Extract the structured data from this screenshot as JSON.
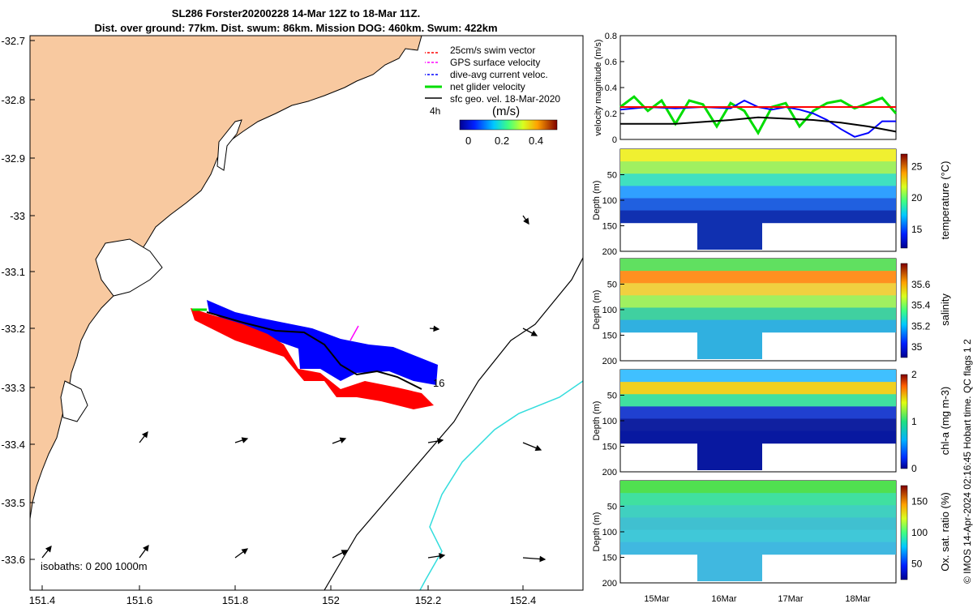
{
  "titles": {
    "line1": "SL286 Forster20200228 14-Mar 12Z to 18-Mar 11Z.",
    "line2": "Dist. over ground: 77km. Dist. swum: 86km. Mission DOG: 460km. Swum: 422km"
  },
  "credit": "© IMOS 14-Apr-2024 02:16:45 Hobart time. QC flags 1  2",
  "map": {
    "lon_ticks": [
      "151.4",
      "151.6",
      "151.8",
      "152",
      "152.2",
      "152.4"
    ],
    "lat_ticks": [
      "-32.7",
      "-32.8",
      "-32.9",
      "-33",
      "-33.1",
      "-33.2",
      "-33.3",
      "-33.4",
      "-33.5",
      "-33.6"
    ],
    "legend": [
      "25cm/s swim vector",
      "GPS surface velocity",
      "dive-avg current veloc.",
      "net glider velocity",
      "sfc geo. vel. 18-Mar-2020"
    ],
    "legend_extra": "4h",
    "colorbar_label": "(m/s)",
    "colorbar_ticks": [
      "0",
      "0.2",
      "0.4"
    ],
    "isobaths": "isobaths: 0   200  1000m",
    "end_label": "16",
    "colors": {
      "land": "#f8c9a0",
      "swim": "#ff0000",
      "gps": "#ff00ff",
      "dac": "#0000ff",
      "net": "#00dd00",
      "isobath1000": "#33dddd"
    }
  },
  "chart_data": [
    {
      "type": "line",
      "ylabel": "velocity magnitude (m/s)",
      "ylim": [
        0,
        0.8
      ],
      "yticks": [
        "0",
        "0.2",
        "0.4",
        "0.6",
        "0.8"
      ],
      "x_ticks": [
        "15Mar",
        "16Mar",
        "17Mar",
        "18Mar"
      ],
      "series": [
        {
          "color": "#00dd00",
          "t": [
            0,
            0.05,
            0.1,
            0.15,
            0.2,
            0.25,
            0.3,
            0.35,
            0.4,
            0.45,
            0.5,
            0.55,
            0.6,
            0.65,
            0.7,
            0.75,
            0.8,
            0.85,
            0.9,
            0.95,
            1
          ],
          "v": [
            0.25,
            0.33,
            0.22,
            0.3,
            0.12,
            0.3,
            0.27,
            0.1,
            0.28,
            0.22,
            0.05,
            0.25,
            0.28,
            0.1,
            0.22,
            0.28,
            0.3,
            0.24,
            0.28,
            0.32,
            0.2
          ]
        },
        {
          "color": "#0000ff",
          "t": [
            0,
            0.1,
            0.2,
            0.3,
            0.4,
            0.45,
            0.5,
            0.55,
            0.6,
            0.65,
            0.7,
            0.75,
            0.8,
            0.85,
            0.9,
            0.95,
            1
          ],
          "v": [
            0.23,
            0.25,
            0.24,
            0.25,
            0.24,
            0.3,
            0.25,
            0.23,
            0.25,
            0.23,
            0.2,
            0.15,
            0.08,
            0.02,
            0.05,
            0.14,
            0.14
          ]
        },
        {
          "color": "#ff0000",
          "t": [
            0,
            1
          ],
          "v": [
            0.25,
            0.25
          ]
        },
        {
          "color": "#000000",
          "t": [
            0,
            0.2,
            0.4,
            0.5,
            0.6,
            0.7,
            0.8,
            0.9,
            1
          ],
          "v": [
            0.12,
            0.12,
            0.15,
            0.17,
            0.16,
            0.15,
            0.13,
            0.1,
            0.06
          ]
        }
      ]
    },
    {
      "type": "heatmap",
      "ylabel": "Depth (m)",
      "cbar_label": "temperature (°C)",
      "cbar_ticks": [
        "15",
        "20",
        "25"
      ],
      "cbar_range": [
        12,
        27
      ],
      "ylim": [
        0,
        200
      ],
      "yticks": [
        "50",
        "100",
        "150",
        "200"
      ],
      "x_ticks": [
        "15Mar",
        "16Mar",
        "17Mar",
        "18Mar"
      ]
    },
    {
      "type": "heatmap",
      "ylabel": "Depth (m)",
      "cbar_label": "salinity",
      "cbar_ticks": [
        "35",
        "35.2",
        "35.4",
        "35.6"
      ],
      "cbar_range": [
        34.9,
        35.8
      ],
      "ylim": [
        0,
        200
      ],
      "yticks": [
        "50",
        "100",
        "150",
        "200"
      ],
      "x_ticks": [
        "15Mar",
        "16Mar",
        "17Mar",
        "18Mar"
      ]
    },
    {
      "type": "heatmap",
      "ylabel": "Depth (m)",
      "cbar_label": "chl-a (mg m-3)",
      "cbar_ticks": [
        "0",
        "1",
        "2"
      ],
      "cbar_range": [
        0,
        2
      ],
      "ylim": [
        0,
        200
      ],
      "yticks": [
        "50",
        "100",
        "150",
        "200"
      ],
      "x_ticks": [
        "15Mar",
        "16Mar",
        "17Mar",
        "18Mar"
      ]
    },
    {
      "type": "heatmap",
      "ylabel": "Depth (m)",
      "cbar_label": "Ox. sat. ratio (%)",
      "cbar_ticks": [
        "50",
        "100",
        "150"
      ],
      "cbar_range": [
        25,
        175
      ],
      "ylim": [
        0,
        200
      ],
      "yticks": [
        "50",
        "100",
        "150",
        "200"
      ],
      "x_ticks": [
        "15Mar",
        "16Mar",
        "17Mar",
        "18Mar"
      ]
    }
  ]
}
